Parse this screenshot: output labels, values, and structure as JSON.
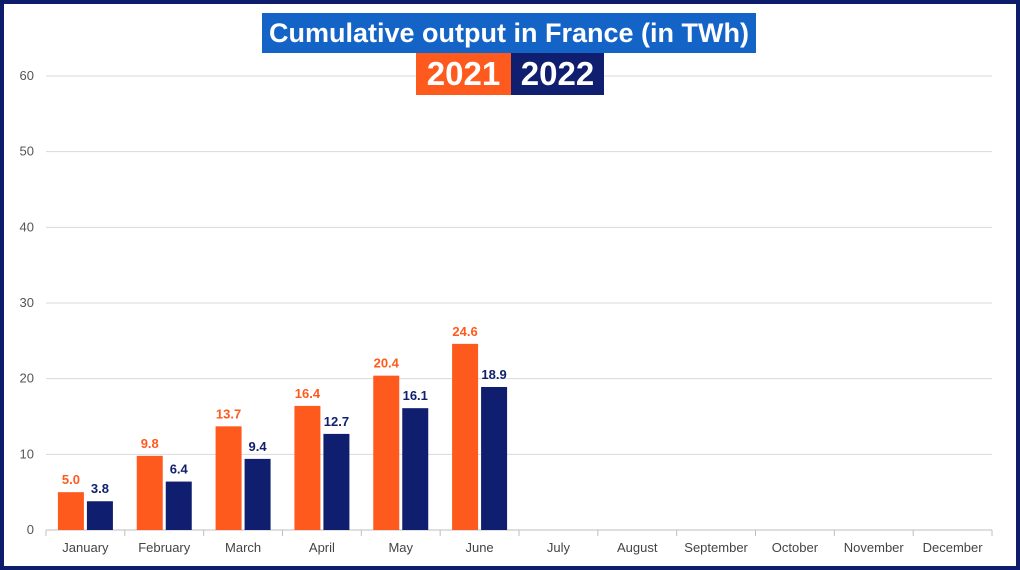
{
  "chart_data": {
    "type": "bar",
    "title": "Cumulative output in France (in TWh)",
    "categories": [
      "January",
      "February",
      "March",
      "April",
      "May",
      "June",
      "July",
      "August",
      "September",
      "October",
      "November",
      "December"
    ],
    "series": [
      {
        "name": "2021",
        "color": "#ff5a1e",
        "values": [
          5.0,
          9.8,
          13.7,
          16.4,
          20.4,
          24.6,
          null,
          null,
          null,
          null,
          null,
          null
        ],
        "labels": [
          "5.0",
          "9.8",
          "13.7",
          "16.4",
          "20.4",
          "24.6"
        ]
      },
      {
        "name": "2022",
        "color": "#0f1e6e",
        "values": [
          3.8,
          6.4,
          9.4,
          12.7,
          16.1,
          18.9,
          null,
          null,
          null,
          null,
          null,
          null
        ],
        "labels": [
          "3.8",
          "6.4",
          "9.4",
          "12.7",
          "16.1",
          "18.9"
        ]
      }
    ],
    "ylim": [
      0,
      60
    ],
    "yticks": [
      "0",
      "10",
      "20",
      "30",
      "40",
      "50",
      "60"
    ],
    "grid": true,
    "legend": "top-center"
  },
  "colors": {
    "frame": "#0d1c6b",
    "title_bg": "#1464c8",
    "grid": "#d9d9d9"
  }
}
